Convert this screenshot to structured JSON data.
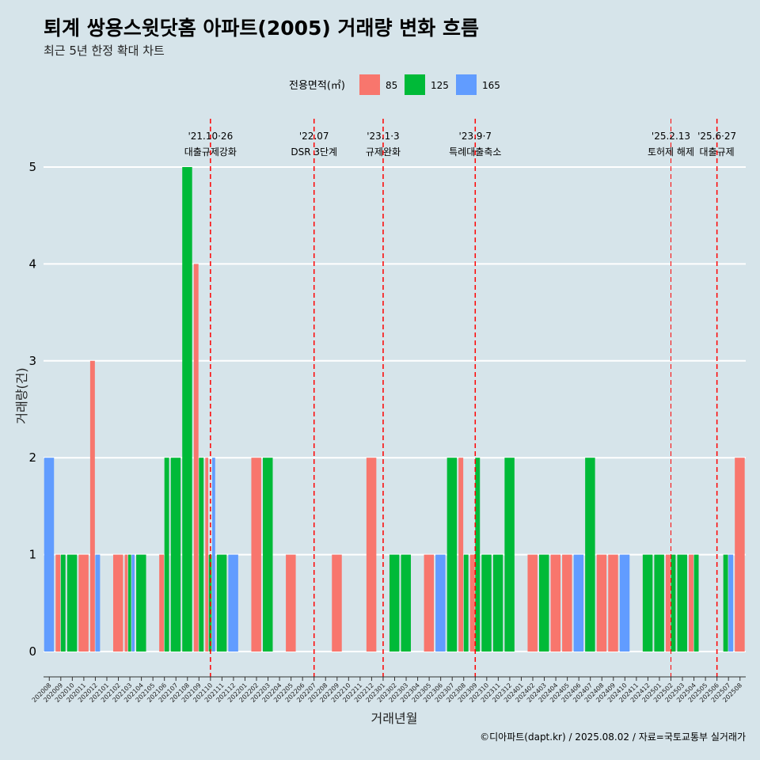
{
  "chart_data": {
    "type": "bar",
    "title": "퇴계 쌍용스윗닷홈 아파트(2005) 거래량 변화 흐름",
    "subtitle": "최근 5년 한정 확대 차트",
    "xlabel": "거래년월",
    "ylabel": "거래량(건)",
    "caption": "©디아파트(dapt.kr) / 2025.08.02 / 자료=국토교통부 실거래가",
    "legend": {
      "title": "전용면적(㎡)",
      "position": "top"
    },
    "ylim": [
      0,
      5
    ],
    "yticks": [
      "0",
      "1",
      "2",
      "3",
      "4",
      "5"
    ],
    "grid": true,
    "categories": [
      "202008",
      "202009",
      "202010",
      "202011",
      "202012",
      "202101",
      "202102",
      "202103",
      "202104",
      "202105",
      "202106",
      "202107",
      "202108",
      "202109",
      "202110",
      "202111",
      "202112",
      "202201",
      "202202",
      "202203",
      "202204",
      "202205",
      "202206",
      "202207",
      "202208",
      "202209",
      "202210",
      "202211",
      "202212",
      "202301",
      "202302",
      "202303",
      "202304",
      "202305",
      "202306",
      "202307",
      "202308",
      "202309",
      "202310",
      "202311",
      "202312",
      "202401",
      "202402",
      "202403",
      "202404",
      "202405",
      "202406",
      "202407",
      "202408",
      "202409",
      "202410",
      "202411",
      "202412",
      "202501",
      "202502",
      "202503",
      "202504",
      "202505",
      "202506",
      "202507",
      "202508"
    ],
    "series": [
      {
        "name": "85",
        "color": "#f8766d",
        "values": [
          0,
          1,
          0,
          1,
          3,
          0,
          1,
          1,
          0,
          0,
          1,
          0,
          0,
          4,
          2,
          0,
          0,
          0,
          2,
          0,
          0,
          1,
          0,
          0,
          0,
          1,
          0,
          0,
          2,
          0,
          0,
          0,
          0,
          1,
          0,
          0,
          2,
          1,
          0,
          0,
          0,
          0,
          1,
          0,
          1,
          1,
          0,
          0,
          1,
          1,
          0,
          0,
          0,
          0,
          1,
          0,
          1,
          0,
          0,
          0,
          2
        ]
      },
      {
        "name": "125",
        "color": "#00ba38",
        "values": [
          0,
          1,
          1,
          0,
          0,
          0,
          0,
          1,
          1,
          0,
          2,
          2,
          5,
          2,
          1,
          1,
          0,
          0,
          0,
          2,
          0,
          0,
          0,
          0,
          0,
          0,
          0,
          0,
          0,
          0,
          1,
          1,
          0,
          0,
          0,
          2,
          1,
          2,
          1,
          1,
          2,
          0,
          0,
          1,
          0,
          0,
          0,
          2,
          0,
          0,
          0,
          0,
          1,
          1,
          1,
          1,
          1,
          0,
          0,
          1,
          0
        ]
      },
      {
        "name": "165",
        "color": "#619cff",
        "values": [
          2,
          0,
          0,
          0,
          1,
          0,
          0,
          1,
          0,
          0,
          0,
          0,
          0,
          0,
          2,
          0,
          1,
          0,
          0,
          0,
          0,
          0,
          0,
          0,
          0,
          0,
          0,
          0,
          0,
          0,
          0,
          0,
          0,
          0,
          1,
          0,
          0,
          0,
          0,
          0,
          0,
          0,
          0,
          0,
          0,
          0,
          1,
          0,
          0,
          0,
          1,
          0,
          0,
          0,
          0,
          0,
          0,
          0,
          0,
          1,
          0
        ]
      }
    ],
    "annotations": [
      {
        "month": "202110",
        "date": "'21.10·26",
        "label": "대출규제강화"
      },
      {
        "month": "202207",
        "date": "'22.07",
        "label": "DSR 3단계"
      },
      {
        "month": "202301",
        "date": "'23.1·3",
        "label": "규제완화"
      },
      {
        "month": "202309",
        "date": "'23.9·7",
        "label": "특례대출축소"
      },
      {
        "month": "202502",
        "date": "'25.2.13",
        "label": "토허제 해제"
      },
      {
        "month": "202506",
        "date": "'25.6·27",
        "label": "대출규제"
      }
    ]
  }
}
